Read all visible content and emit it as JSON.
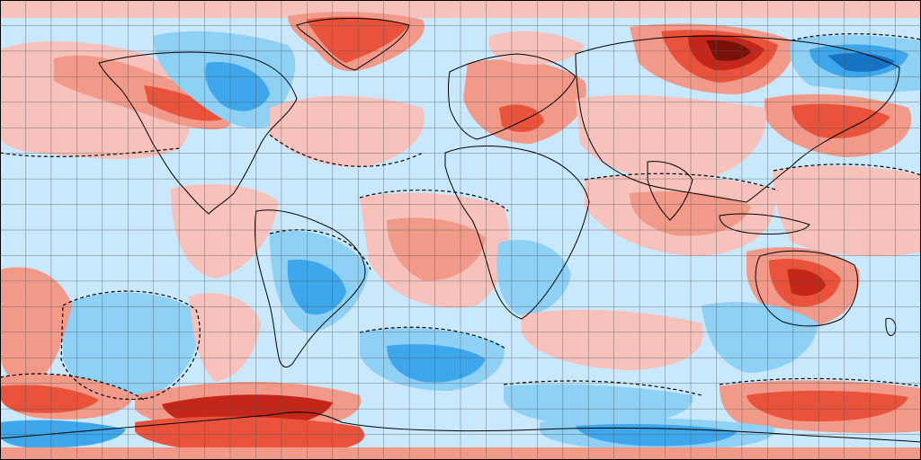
{
  "map": {
    "projection": "equirectangular",
    "grid_spacing_deg": 10,
    "legend": "none",
    "title": "",
    "palette": {
      "ocean_neutral": "#ffffff",
      "light_blue": "#c9e8fb",
      "mid_blue": "#8fd0f5",
      "blue": "#3ea6ea",
      "dark_blue": "#1673c4",
      "deep_blue": "#0b3f86",
      "light_red": "#f6c2bb",
      "mid_red": "#f19a8a",
      "red": "#e9533b",
      "dark_red": "#c4261a",
      "deep_red": "#7a1108",
      "coastline": "#000000",
      "gridline": "#555555"
    },
    "anomaly_regions": [
      {
        "name": "greenland",
        "sign": "warm"
      },
      {
        "name": "northeast-siberia",
        "sign": "strong-warm"
      },
      {
        "name": "far-east-russia",
        "sign": "cold"
      },
      {
        "name": "alaska-northwest-canada",
        "sign": "warm"
      },
      {
        "name": "canada-hudson",
        "sign": "cold"
      },
      {
        "name": "south-america-interior",
        "sign": "cold"
      },
      {
        "name": "southern-africa",
        "sign": "cold"
      },
      {
        "name": "australia-interior",
        "sign": "warm"
      },
      {
        "name": "south-pacific-subtropics",
        "sign": "cold"
      },
      {
        "name": "southern-ocean-band",
        "sign": "warm"
      },
      {
        "name": "antarctica-east",
        "sign": "cold"
      }
    ]
  }
}
